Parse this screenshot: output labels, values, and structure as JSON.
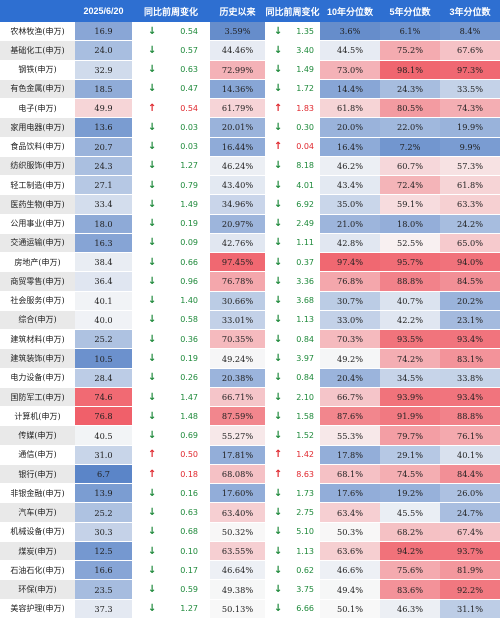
{
  "chart_data": {
    "type": "table",
    "columns": [
      "",
      "2025/6/20",
      "同比前周变化",
      "历史以来",
      "同比前周变化",
      "10年分位数",
      "5年分位数",
      "3年分位数"
    ],
    "rows": [
      {
        "name": "农林牧渔(申万)",
        "value": "16.9",
        "dir1": "down",
        "chg1": "0.54",
        "hist": "3.59%",
        "dir2": "down",
        "chg2": "1.35",
        "y10": "3.6%",
        "y5": "6.1%",
        "y3": "8.4%"
      },
      {
        "name": "基础化工(申万)",
        "value": "24.0",
        "dir1": "down",
        "chg1": "0.57",
        "hist": "44.46%",
        "dir2": "down",
        "chg2": "3.40",
        "y10": "44.5%",
        "y5": "75.2%",
        "y3": "67.6%"
      },
      {
        "name": "钢铁(申万)",
        "value": "32.9",
        "dir1": "down",
        "chg1": "0.63",
        "hist": "72.99%",
        "dir2": "down",
        "chg2": "1.49",
        "y10": "73.0%",
        "y5": "98.1%",
        "y3": "97.3%"
      },
      {
        "name": "有色金属(申万)",
        "value": "18.5",
        "dir1": "down",
        "chg1": "0.47",
        "hist": "14.36%",
        "dir2": "down",
        "chg2": "1.72",
        "y10": "14.4%",
        "y5": "24.3%",
        "y3": "33.5%"
      },
      {
        "name": "电子(申万)",
        "value": "49.9",
        "dir1": "up",
        "chg1": "0.54",
        "hist": "61.79%",
        "dir2": "up",
        "chg2": "1.83",
        "y10": "61.8%",
        "y5": "80.5%",
        "y3": "74.3%"
      },
      {
        "name": "家用电器(申万)",
        "value": "13.6",
        "dir1": "down",
        "chg1": "0.03",
        "hist": "20.01%",
        "dir2": "down",
        "chg2": "0.30",
        "y10": "20.0%",
        "y5": "22.0%",
        "y3": "19.9%"
      },
      {
        "name": "食品饮料(申万)",
        "value": "20.7",
        "dir1": "down",
        "chg1": "0.03",
        "hist": "16.44%",
        "dir2": "up",
        "chg2": "0.04",
        "y10": "16.4%",
        "y5": "7.2%",
        "y3": "9.9%"
      },
      {
        "name": "纺织服饰(申万)",
        "value": "24.3",
        "dir1": "down",
        "chg1": "1.27",
        "hist": "46.24%",
        "dir2": "down",
        "chg2": "8.18",
        "y10": "46.2%",
        "y5": "60.7%",
        "y3": "57.3%"
      },
      {
        "name": "轻工制造(申万)",
        "value": "27.1",
        "dir1": "down",
        "chg1": "0.79",
        "hist": "43.40%",
        "dir2": "down",
        "chg2": "4.01",
        "y10": "43.4%",
        "y5": "72.4%",
        "y3": "61.8%"
      },
      {
        "name": "医药生物(申万)",
        "value": "33.4",
        "dir1": "down",
        "chg1": "1.49",
        "hist": "34.96%",
        "dir2": "down",
        "chg2": "6.92",
        "y10": "35.0%",
        "y5": "59.1%",
        "y3": "63.3%"
      },
      {
        "name": "公用事业(申万)",
        "value": "18.0",
        "dir1": "down",
        "chg1": "0.19",
        "hist": "20.97%",
        "dir2": "down",
        "chg2": "2.49",
        "y10": "21.0%",
        "y5": "18.0%",
        "y3": "24.2%"
      },
      {
        "name": "交通运输(申万)",
        "value": "16.3",
        "dir1": "down",
        "chg1": "0.09",
        "hist": "42.76%",
        "dir2": "down",
        "chg2": "1.11",
        "y10": "42.8%",
        "y5": "52.5%",
        "y3": "65.0%"
      },
      {
        "name": "房地产(申万)",
        "value": "38.4",
        "dir1": "down",
        "chg1": "0.66",
        "hist": "97.45%",
        "dir2": "down",
        "chg2": "0.37",
        "y10": "97.4%",
        "y5": "95.7%",
        "y3": "94.0%"
      },
      {
        "name": "商贸零售(申万)",
        "value": "36.4",
        "dir1": "down",
        "chg1": "0.96",
        "hist": "76.78%",
        "dir2": "down",
        "chg2": "3.36",
        "y10": "76.8%",
        "y5": "88.8%",
        "y3": "84.5%"
      },
      {
        "name": "社会服务(申万)",
        "value": "40.1",
        "dir1": "down",
        "chg1": "1.40",
        "hist": "30.66%",
        "dir2": "down",
        "chg2": "3.68",
        "y10": "30.7%",
        "y5": "40.7%",
        "y3": "20.2%"
      },
      {
        "name": "综合(申万)",
        "value": "40.0",
        "dir1": "down",
        "chg1": "0.58",
        "hist": "33.01%",
        "dir2": "down",
        "chg2": "1.13",
        "y10": "33.0%",
        "y5": "42.2%",
        "y3": "23.1%"
      },
      {
        "name": "建筑材料(申万)",
        "value": "25.2",
        "dir1": "down",
        "chg1": "0.36",
        "hist": "70.35%",
        "dir2": "down",
        "chg2": "0.84",
        "y10": "70.3%",
        "y5": "93.5%",
        "y3": "93.4%"
      },
      {
        "name": "建筑装饰(申万)",
        "value": "10.5",
        "dir1": "down",
        "chg1": "0.19",
        "hist": "49.24%",
        "dir2": "down",
        "chg2": "3.97",
        "y10": "49.2%",
        "y5": "74.2%",
        "y3": "83.1%"
      },
      {
        "name": "电力设备(申万)",
        "value": "28.4",
        "dir1": "down",
        "chg1": "0.26",
        "hist": "20.38%",
        "dir2": "down",
        "chg2": "0.84",
        "y10": "20.4%",
        "y5": "34.5%",
        "y3": "33.8%"
      },
      {
        "name": "国防军工(申万)",
        "value": "74.6",
        "dir1": "down",
        "chg1": "1.47",
        "hist": "66.71%",
        "dir2": "down",
        "chg2": "2.10",
        "y10": "66.7%",
        "y5": "93.9%",
        "y3": "93.4%"
      },
      {
        "name": "计算机(申万)",
        "value": "76.8",
        "dir1": "down",
        "chg1": "1.48",
        "hist": "87.59%",
        "dir2": "down",
        "chg2": "1.58",
        "y10": "87.6%",
        "y5": "91.9%",
        "y3": "88.8%"
      },
      {
        "name": "传媒(申万)",
        "value": "40.5",
        "dir1": "down",
        "chg1": "0.69",
        "hist": "55.27%",
        "dir2": "down",
        "chg2": "1.52",
        "y10": "55.3%",
        "y5": "79.7%",
        "y3": "76.1%"
      },
      {
        "name": "通信(申万)",
        "value": "31.0",
        "dir1": "up",
        "chg1": "0.50",
        "hist": "17.81%",
        "dir2": "up",
        "chg2": "1.42",
        "y10": "17.8%",
        "y5": "29.1%",
        "y3": "40.1%"
      },
      {
        "name": "银行(申万)",
        "value": "6.7",
        "dir1": "up",
        "chg1": "0.18",
        "hist": "68.08%",
        "dir2": "up",
        "chg2": "8.63",
        "y10": "68.1%",
        "y5": "74.5%",
        "y3": "84.4%"
      },
      {
        "name": "非银金融(申万)",
        "value": "13.9",
        "dir1": "down",
        "chg1": "0.16",
        "hist": "17.60%",
        "dir2": "down",
        "chg2": "1.73",
        "y10": "17.6%",
        "y5": "19.2%",
        "y3": "26.0%"
      },
      {
        "name": "汽车(申万)",
        "value": "25.2",
        "dir1": "down",
        "chg1": "0.63",
        "hist": "63.40%",
        "dir2": "down",
        "chg2": "2.75",
        "y10": "63.4%",
        "y5": "45.5%",
        "y3": "24.7%"
      },
      {
        "name": "机械设备(申万)",
        "value": "30.3",
        "dir1": "down",
        "chg1": "0.68",
        "hist": "50.32%",
        "dir2": "down",
        "chg2": "5.10",
        "y10": "50.3%",
        "y5": "68.2%",
        "y3": "67.4%"
      },
      {
        "name": "煤炭(申万)",
        "value": "12.5",
        "dir1": "down",
        "chg1": "0.10",
        "hist": "63.55%",
        "dir2": "down",
        "chg2": "1.13",
        "y10": "63.6%",
        "y5": "94.2%",
        "y3": "93.7%"
      },
      {
        "name": "石油石化(申万)",
        "value": "16.6",
        "dir1": "down",
        "chg1": "0.17",
        "hist": "46.64%",
        "dir2": "down",
        "chg2": "0.62",
        "y10": "46.6%",
        "y5": "75.6%",
        "y3": "81.9%"
      },
      {
        "name": "环保(申万)",
        "value": "23.5",
        "dir1": "down",
        "chg1": "0.59",
        "hist": "49.38%",
        "dir2": "down",
        "chg2": "3.75",
        "y10": "49.4%",
        "y5": "83.6%",
        "y3": "92.2%"
      },
      {
        "name": "美容护理(申万)",
        "value": "37.3",
        "dir1": "down",
        "chg1": "1.27",
        "hist": "50.13%",
        "dir2": "down",
        "chg2": "6.66",
        "y10": "50.1%",
        "y5": "46.3%",
        "y3": "31.1%"
      }
    ]
  },
  "colors": {
    "header": "#2e6fd1",
    "name_bg_alt": "#e9e9e9",
    "low_blue": "#5b85c8",
    "mid_white": "#f8f8f8",
    "high_red": "#f0606a",
    "up_arrow": "#e0282e",
    "down_arrow": "#1f8a3b"
  },
  "icons": {
    "up": "up-arrow-icon",
    "down": "down-arrow-icon"
  }
}
